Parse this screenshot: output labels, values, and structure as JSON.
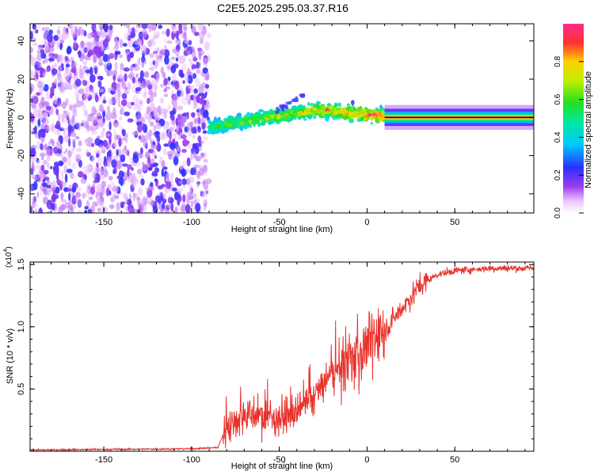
{
  "figure_title": "C2E5.2025.295.03.37.R16",
  "chart_data": [
    {
      "type": "heatmap",
      "title": "C2E5.2025.295.03.37.R16",
      "xlabel": "Height of straight line (km)",
      "ylabel": "Frequency (Hz)",
      "xlim": [
        -192,
        95
      ],
      "ylim": [
        -50,
        49
      ],
      "xticks": [
        -150,
        -100,
        -50,
        0,
        50
      ],
      "yticks": [
        -40,
        -20,
        0,
        20,
        40
      ],
      "colorbar": {
        "label": "Normalized spectral amplitude",
        "range": [
          0,
          1
        ],
        "ticks": [
          0.0,
          0.2,
          0.4,
          0.6,
          0.8
        ]
      },
      "regions": [
        {
          "name": "scattered noise",
          "x_range": [
            -192,
            -90
          ],
          "f_range": [
            -50,
            49
          ],
          "amplitude_range": [
            0.05,
            0.25
          ]
        },
        {
          "name": "emerging signal",
          "x_range": [
            -90,
            10
          ],
          "center_freq": [
            -5,
            4
          ],
          "half_width_hz": 6,
          "amplitude_range": [
            0.2,
            0.95
          ]
        },
        {
          "name": "stable signal",
          "x_range": [
            10,
            95
          ],
          "center_freq": 0,
          "half_width_hz": 2,
          "amplitude_range": [
            0.5,
            1.0
          ]
        }
      ]
    },
    {
      "type": "line",
      "xlabel": "Height of straight line (km)",
      "ylabel": "SNR (10 * v/v)",
      "y_multiplier_label": "(x10",
      "y_multiplier_exponent": "4",
      "y_multiplier_close": ")",
      "xlim": [
        -192,
        95
      ],
      "ylim": [
        0,
        1.52
      ],
      "xticks": [
        -150,
        -100,
        -50,
        0,
        50
      ],
      "yticks": [
        0.5,
        1.0,
        1.5
      ],
      "series": [
        {
          "name": "SNR",
          "color": "#e8312b",
          "x": [
            -192,
            -150,
            -100,
            -85,
            -80,
            -70,
            -60,
            -50,
            -40,
            -30,
            -20,
            -10,
            0,
            10,
            20,
            30,
            40,
            50,
            60,
            70,
            80,
            95
          ],
          "y": [
            0.01,
            0.015,
            0.02,
            0.03,
            0.2,
            0.3,
            0.28,
            0.27,
            0.3,
            0.45,
            0.62,
            0.72,
            0.85,
            0.97,
            1.15,
            1.33,
            1.42,
            1.45,
            1.46,
            1.47,
            1.47,
            1.47
          ]
        }
      ]
    }
  ]
}
